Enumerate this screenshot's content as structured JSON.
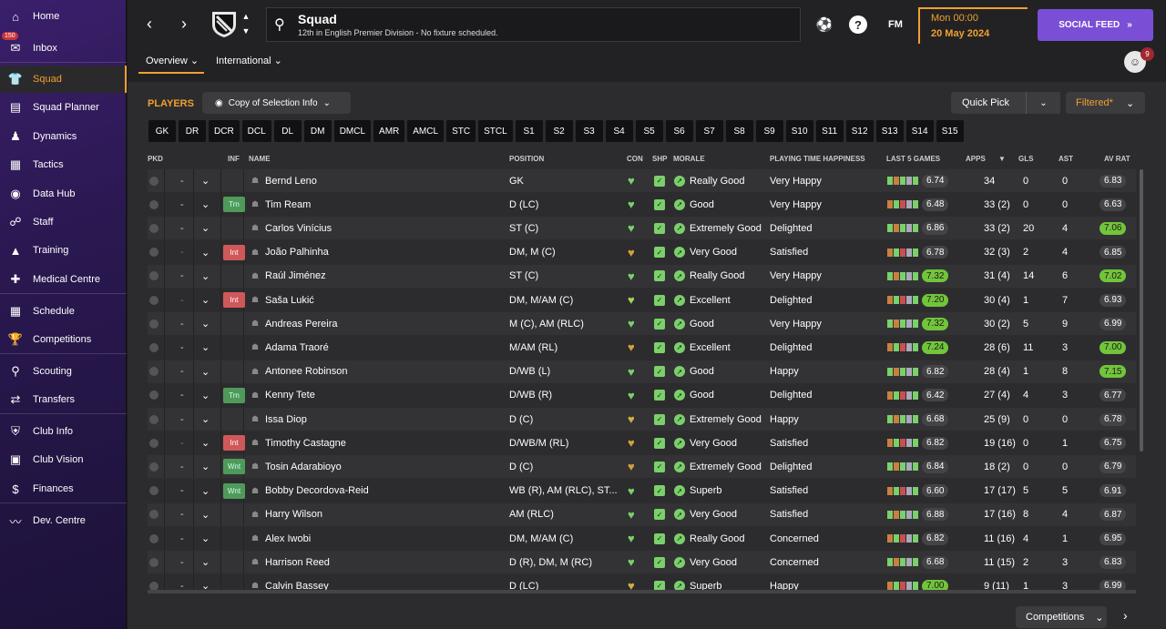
{
  "sidebar": {
    "items": [
      {
        "label": "Home",
        "icon": "home-icon",
        "glyph": "⌂",
        "name": "home"
      },
      {
        "label": "Inbox",
        "icon": "inbox-icon",
        "glyph": "✉",
        "name": "inbox",
        "badge": "150"
      },
      {
        "label": "Squad",
        "icon": "shirt-icon",
        "glyph": "👕",
        "name": "squad",
        "active": true
      },
      {
        "label": "Squad Planner",
        "icon": "clipboard-icon",
        "glyph": "▤",
        "name": "squad-planner"
      },
      {
        "label": "Dynamics",
        "icon": "people-icon",
        "glyph": "♟",
        "name": "dynamics"
      },
      {
        "label": "Tactics",
        "icon": "tactics-icon",
        "glyph": "▦",
        "name": "tactics"
      },
      {
        "label": "Data Hub",
        "icon": "data-icon",
        "glyph": "◉",
        "name": "data-hub"
      },
      {
        "label": "Staff",
        "icon": "staff-icon",
        "glyph": "☍",
        "name": "staff"
      },
      {
        "label": "Training",
        "icon": "training-icon",
        "glyph": "▲",
        "name": "training"
      },
      {
        "label": "Medical Centre",
        "icon": "medical-icon",
        "glyph": "✚",
        "name": "medical-centre"
      },
      {
        "label": "Schedule",
        "icon": "calendar-icon",
        "glyph": "▦",
        "name": "schedule"
      },
      {
        "label": "Competitions",
        "icon": "trophy-icon",
        "glyph": "🏆",
        "name": "competitions"
      },
      {
        "label": "Scouting",
        "icon": "search-icon",
        "glyph": "⚲",
        "name": "scouting"
      },
      {
        "label": "Transfers",
        "icon": "transfer-icon",
        "glyph": "⇄",
        "name": "transfers"
      },
      {
        "label": "Club Info",
        "icon": "shield-icon",
        "glyph": "⛨",
        "name": "club-info"
      },
      {
        "label": "Club Vision",
        "icon": "briefcase-icon",
        "glyph": "▣",
        "name": "club-vision"
      },
      {
        "label": "Finances",
        "icon": "money-icon",
        "glyph": "$",
        "name": "finances"
      },
      {
        "label": "Dev. Centre",
        "icon": "growth-icon",
        "glyph": "〰",
        "name": "dev-centre"
      }
    ]
  },
  "header": {
    "title": "Squad",
    "subtitle": "12th in English Premier Division - No fixture scheduled.",
    "time": "Mon 00:00",
    "date": "20 May 2024",
    "social_feed": "SOCIAL FEED",
    "fm_label": "FM",
    "tabs": [
      "Overview",
      "International"
    ],
    "user_badge": "9"
  },
  "toolbar": {
    "players_label": "PLAYERS",
    "copy_label": "Copy of Selection Info",
    "quick_pick": "Quick Pick",
    "filtered": "Filtered*"
  },
  "positions": [
    "GK",
    "DR",
    "DCR",
    "DCL",
    "DL",
    "DM",
    "DMCL",
    "AMR",
    "AMCL",
    "STC",
    "STCL",
    "S1",
    "S2",
    "S3",
    "S4",
    "S5",
    "S6",
    "S7",
    "S8",
    "S9",
    "S10",
    "S11",
    "S12",
    "S13",
    "S14",
    "S15"
  ],
  "columns": {
    "pkd": "PKD",
    "inf": "INF",
    "name": "NAME",
    "position": "POSITION",
    "con": "CON",
    "shp": "SHP",
    "morale": "MORALE",
    "pth": "PLAYING TIME HAPPINESS",
    "last5": "LAST 5 GAMES",
    "apps": "APPS",
    "gls": "GLS",
    "ast": "AST",
    "avrat": "AV RAT"
  },
  "players": [
    {
      "name": "Bernd Leno",
      "inf": "",
      "pos": "GK",
      "con": "#7ad06a",
      "morale": "Really Good",
      "pth": "Very Happy",
      "last5": "6.74",
      "last5_good": false,
      "apps": "34",
      "gls": "0",
      "ast": "0",
      "avrat": "6.83",
      "avrat_good": false
    },
    {
      "name": "Tim Ream",
      "inf": "Trn",
      "pos": "D (LC)",
      "con": "#7ad06a",
      "morale": "Good",
      "pth": "Very Happy",
      "last5": "6.48",
      "last5_good": false,
      "apps": "33 (2)",
      "gls": "0",
      "ast": "0",
      "avrat": "6.63",
      "avrat_good": false
    },
    {
      "name": "Carlos Vinícius",
      "inf": "",
      "pos": "ST (C)",
      "con": "#7ad06a",
      "morale": "Extremely Good",
      "pth": "Delighted",
      "last5": "6.86",
      "last5_good": false,
      "apps": "33 (2)",
      "gls": "20",
      "ast": "4",
      "avrat": "7.06",
      "avrat_good": true
    },
    {
      "name": "João Palhinha",
      "inf": "Int",
      "pos": "DM, M (C)",
      "con": "#d4a040",
      "morale": "Very Good",
      "pth": "Satisfied",
      "last5": "6.78",
      "last5_good": false,
      "apps": "32 (3)",
      "gls": "2",
      "ast": "4",
      "avrat": "6.85",
      "avrat_good": false
    },
    {
      "name": "Raúl Jiménez",
      "inf": "",
      "pos": "ST (C)",
      "con": "#7ad06a",
      "morale": "Really Good",
      "pth": "Very Happy",
      "last5": "7.32",
      "last5_good": true,
      "apps": "31 (4)",
      "gls": "14",
      "ast": "6",
      "avrat": "7.02",
      "avrat_good": true
    },
    {
      "name": "Saša Lukić",
      "inf": "Int",
      "pos": "DM, M/AM (C)",
      "con": "#a8d05a",
      "morale": "Excellent",
      "pth": "Delighted",
      "last5": "7.20",
      "last5_good": true,
      "apps": "30 (4)",
      "gls": "1",
      "ast": "7",
      "avrat": "6.93",
      "avrat_good": false
    },
    {
      "name": "Andreas Pereira",
      "inf": "",
      "pos": "M (C), AM (RLC)",
      "con": "#7ad06a",
      "morale": "Good",
      "pth": "Very Happy",
      "last5": "7.32",
      "last5_good": true,
      "apps": "30 (2)",
      "gls": "5",
      "ast": "9",
      "avrat": "6.99",
      "avrat_good": false
    },
    {
      "name": "Adama Traoré",
      "inf": "",
      "pos": "M/AM (RL)",
      "con": "#d4a040",
      "morale": "Excellent",
      "pth": "Delighted",
      "last5": "7.24",
      "last5_good": true,
      "apps": "28 (6)",
      "gls": "11",
      "ast": "3",
      "avrat": "7.00",
      "avrat_good": true
    },
    {
      "name": "Antonee Robinson",
      "inf": "",
      "pos": "D/WB (L)",
      "con": "#7ad06a",
      "morale": "Good",
      "pth": "Happy",
      "last5": "6.82",
      "last5_good": false,
      "apps": "28 (4)",
      "gls": "1",
      "ast": "8",
      "avrat": "7.15",
      "avrat_good": true
    },
    {
      "name": "Kenny Tete",
      "inf": "Trn",
      "pos": "D/WB (R)",
      "con": "#7ad06a",
      "morale": "Good",
      "pth": "Delighted",
      "last5": "6.42",
      "last5_good": false,
      "apps": "27 (4)",
      "gls": "4",
      "ast": "3",
      "avrat": "6.77",
      "avrat_good": false
    },
    {
      "name": "Issa Diop",
      "inf": "",
      "pos": "D (C)",
      "con": "#d4b040",
      "morale": "Extremely Good",
      "pth": "Happy",
      "last5": "6.68",
      "last5_good": false,
      "apps": "25 (9)",
      "gls": "0",
      "ast": "0",
      "avrat": "6.78",
      "avrat_good": false
    },
    {
      "name": "Timothy Castagne",
      "inf": "Int",
      "pos": "D/WB/M (RL)",
      "con": "#d4a040",
      "morale": "Very Good",
      "pth": "Satisfied",
      "last5": "6.82",
      "last5_good": false,
      "apps": "19 (16)",
      "gls": "0",
      "ast": "1",
      "avrat": "6.75",
      "avrat_good": false
    },
    {
      "name": "Tosin Adarabioyo",
      "inf": "Wnt",
      "pos": "D (C)",
      "con": "#d4a040",
      "morale": "Extremely Good",
      "pth": "Delighted",
      "last5": "6.84",
      "last5_good": false,
      "apps": "18 (2)",
      "gls": "0",
      "ast": "0",
      "avrat": "6.79",
      "avrat_good": false
    },
    {
      "name": "Bobby Decordova-Reid",
      "inf": "Wnt",
      "pos": "WB (R), AM (RLC), ST...",
      "con": "#7ad06a",
      "morale": "Superb",
      "pth": "Satisfied",
      "last5": "6.60",
      "last5_good": false,
      "apps": "17 (17)",
      "gls": "5",
      "ast": "5",
      "avrat": "6.91",
      "avrat_good": false
    },
    {
      "name": "Harry Wilson",
      "inf": "",
      "pos": "AM (RLC)",
      "con": "#7ad06a",
      "morale": "Very Good",
      "pth": "Satisfied",
      "last5": "6.88",
      "last5_good": false,
      "apps": "17 (16)",
      "gls": "8",
      "ast": "4",
      "avrat": "6.87",
      "avrat_good": false
    },
    {
      "name": "Alex Iwobi",
      "inf": "",
      "pos": "DM, M/AM (C)",
      "con": "#7ad06a",
      "morale": "Really Good",
      "pth": "Concerned",
      "last5": "6.82",
      "last5_good": false,
      "apps": "11 (16)",
      "gls": "4",
      "ast": "1",
      "avrat": "6.95",
      "avrat_good": false
    },
    {
      "name": "Harrison Reed",
      "inf": "",
      "pos": "D (R), DM, M (RC)",
      "con": "#7ad06a",
      "morale": "Very Good",
      "pth": "Concerned",
      "last5": "6.68",
      "last5_good": false,
      "apps": "11 (15)",
      "gls": "2",
      "ast": "3",
      "avrat": "6.83",
      "avrat_good": false
    },
    {
      "name": "Calvin Bassey",
      "inf": "",
      "pos": "D (LC)",
      "con": "#d4b040",
      "morale": "Superb",
      "pth": "Happy",
      "last5": "7.00",
      "last5_good": true,
      "apps": "9 (11)",
      "gls": "1",
      "ast": "3",
      "avrat": "6.99",
      "avrat_good": false
    }
  ],
  "footer": {
    "competitions": "Competitions"
  }
}
